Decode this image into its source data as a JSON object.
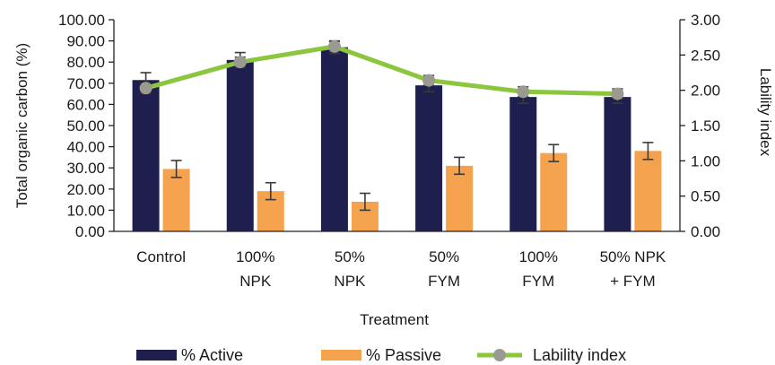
{
  "chart_data": {
    "type": "bar",
    "xlabel": "Treatment",
    "ylabel": "Total organic carbon (%)",
    "y2label": "Lability index",
    "ylim": [
      0,
      100
    ],
    "y2lim": [
      0,
      3
    ],
    "yticks": [
      "0.00",
      "10.00",
      "20.00",
      "30.00",
      "40.00",
      "50.00",
      "60.00",
      "70.00",
      "80.00",
      "90.00",
      "100.00"
    ],
    "y2ticks": [
      "0.00",
      "0.50",
      "1.00",
      "1.50",
      "2.00",
      "2.50",
      "3.00"
    ],
    "categories": [
      [
        "Control"
      ],
      [
        "100%",
        "NPK"
      ],
      [
        "50%",
        "NPK"
      ],
      [
        "50%",
        "FYM"
      ],
      [
        "100%",
        "FYM"
      ],
      [
        "50% NPK",
        "+ FYM"
      ]
    ],
    "series": [
      {
        "name": "% Active",
        "kind": "bar",
        "axis": "left",
        "color": "#1f1f4f",
        "values": [
          71.5,
          81.0,
          87.0,
          69.0,
          63.5,
          63.5
        ],
        "errors": [
          3.5,
          3.5,
          3.0,
          3.0,
          3.0,
          3.0
        ]
      },
      {
        "name": "% Passive",
        "kind": "bar",
        "axis": "left",
        "color": "#f5a24e",
        "values": [
          29.5,
          19.0,
          14.0,
          31.0,
          37.0,
          38.0
        ],
        "errors": [
          4.0,
          4.0,
          4.0,
          4.0,
          4.0,
          4.0
        ]
      },
      {
        "name": "Lability index",
        "kind": "line",
        "axis": "right",
        "color": "#8cc63f",
        "marker_color": "#9a9a90",
        "values": [
          2.03,
          2.4,
          2.62,
          2.14,
          1.98,
          1.95
        ],
        "errors": [
          0.07,
          0.07,
          0.07,
          0.07,
          0.07,
          0.07
        ]
      }
    ],
    "legend_position": "bottom",
    "grid": false
  }
}
